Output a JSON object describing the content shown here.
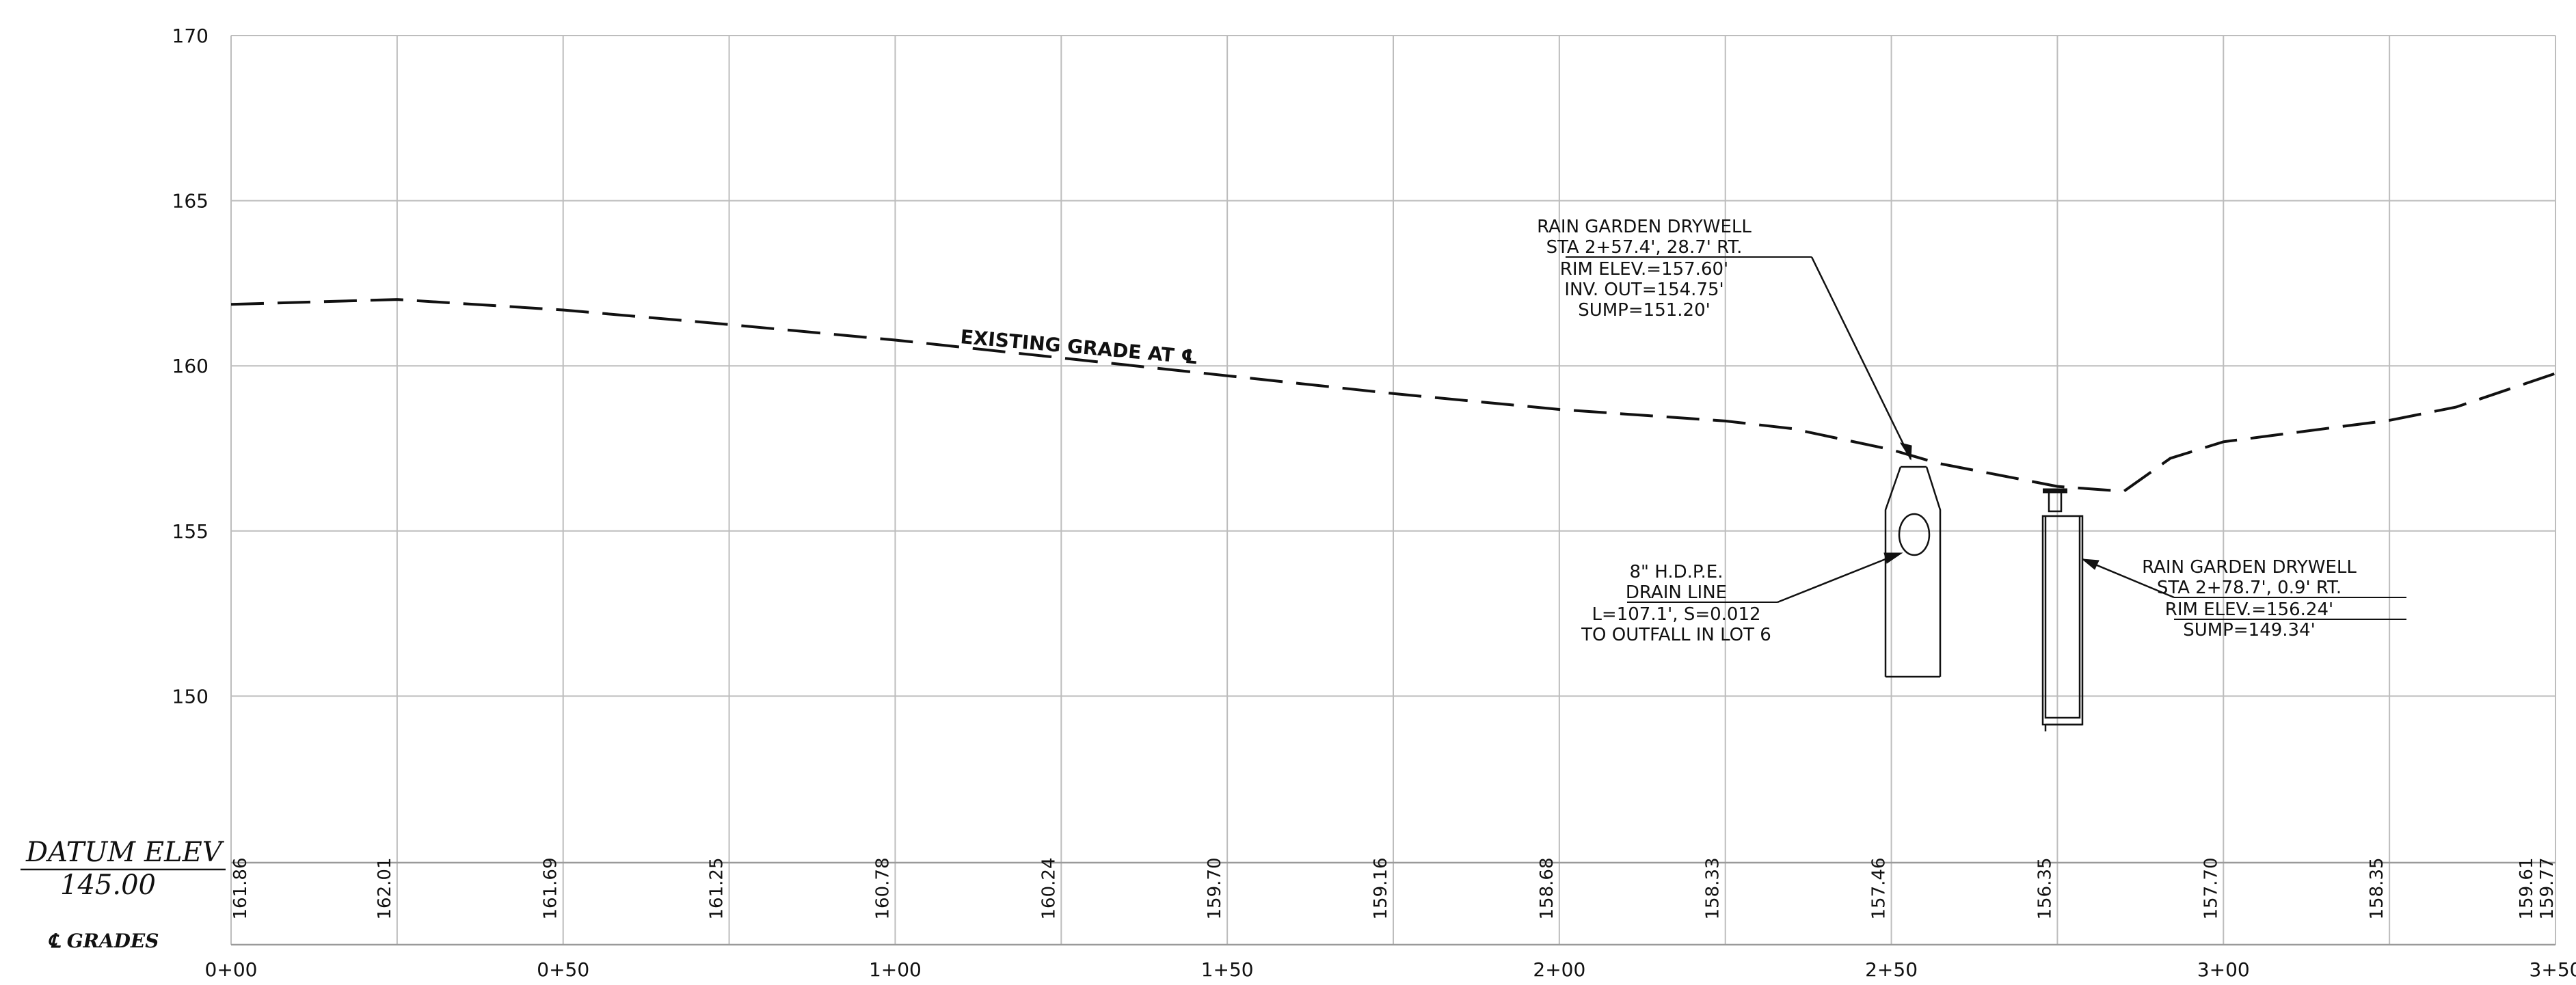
{
  "y_axis": {
    "ticks": [
      "170",
      "165",
      "160",
      "155",
      "150"
    ],
    "values": [
      170,
      165,
      160,
      155,
      150
    ]
  },
  "x_axis": {
    "ticks": [
      "0+00",
      "0+50",
      "1+00",
      "1+50",
      "2+00",
      "2+50",
      "3+00",
      "3+50"
    ],
    "values": [
      0,
      50,
      100,
      150,
      200,
      250,
      300,
      350
    ]
  },
  "datum": {
    "label": "DATUM ELEV",
    "value": "145.00"
  },
  "grades_label": "℄ GRADES",
  "grade_values": [
    {
      "sta": 0,
      "text": "161.86"
    },
    {
      "sta": 25,
      "text": "162.01"
    },
    {
      "sta": 50,
      "text": "161.69"
    },
    {
      "sta": 75,
      "text": "161.25"
    },
    {
      "sta": 100,
      "text": "160.78"
    },
    {
      "sta": 125,
      "text": "160.24"
    },
    {
      "sta": 150,
      "text": "159.70"
    },
    {
      "sta": 175,
      "text": "159.16"
    },
    {
      "sta": 200,
      "text": "158.68"
    },
    {
      "sta": 225,
      "text": "158.33"
    },
    {
      "sta": 250,
      "text": "157.46"
    },
    {
      "sta": 275,
      "text": "156.35"
    },
    {
      "sta": 300,
      "text": "157.70"
    },
    {
      "sta": 325,
      "text": "158.35"
    },
    {
      "sta": 348,
      "text": "159.61"
    },
    {
      "sta": 350,
      "text": "159.77"
    }
  ],
  "existing_grade": {
    "label": "EXISTING GRADE AT ℄",
    "points": [
      [
        0,
        161.86
      ],
      [
        25,
        162.01
      ],
      [
        50,
        161.69
      ],
      [
        75,
        161.25
      ],
      [
        100,
        160.78
      ],
      [
        125,
        160.24
      ],
      [
        150,
        159.7
      ],
      [
        175,
        159.16
      ],
      [
        200,
        158.68
      ],
      [
        225,
        158.33
      ],
      [
        235,
        158.1
      ],
      [
        250,
        157.46
      ],
      [
        257,
        157.05
      ],
      [
        275,
        156.35
      ],
      [
        285,
        156.2
      ],
      [
        292,
        157.2
      ],
      [
        300,
        157.7
      ],
      [
        325,
        158.35
      ],
      [
        335,
        158.75
      ],
      [
        350,
        159.77
      ]
    ]
  },
  "drywell_1": {
    "lines": [
      "RAIN GARDEN DRYWELL",
      "STA 2+57.4', 28.7' RT.",
      "RIM ELEV.=157.60'",
      "INV. OUT=154.75'",
      "SUMP=151.20'"
    ],
    "sta": 257.4
  },
  "drywell_2": {
    "lines": [
      "RAIN GARDEN DRYWELL",
      "STA 2+78.7', 0.9' RT.",
      "RIM ELEV.=156.24'",
      "SUMP=149.34'"
    ],
    "sta": 278.7
  },
  "drain": {
    "lines": [
      "8\" H.D.P.E.",
      "DRAIN LINE",
      "L=107.1', S=0.012",
      "TO OUTFALL IN LOT 6"
    ]
  }
}
